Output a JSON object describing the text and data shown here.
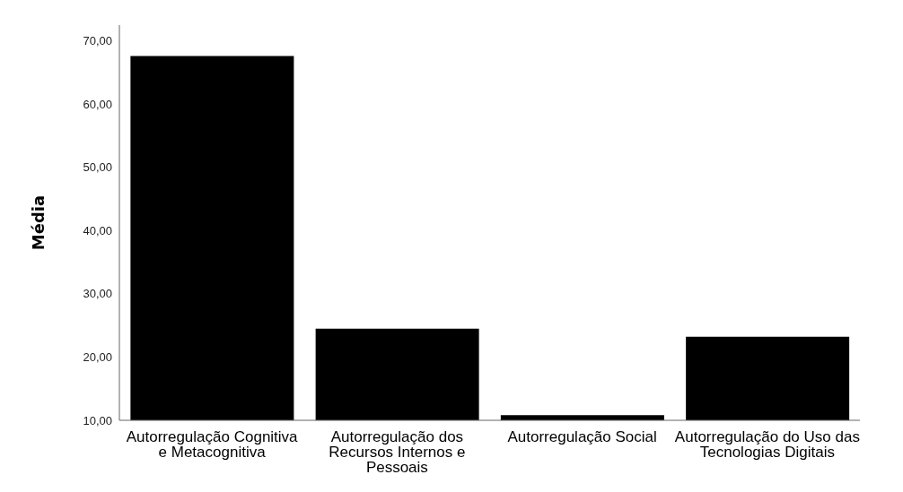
{
  "chart_data": {
    "type": "bar",
    "ylabel": "Média",
    "categories": [
      "Autorregulação Cognitiva e Metacognitiva",
      "Autorregulação dos Recursos Internos e Pessoais",
      "Autorregulação Social",
      "Autorregulação do Uso das Tecnologias Digitais"
    ],
    "values": [
      67.6,
      24.5,
      10.8,
      23.2
    ],
    "color": "#000000",
    "ylim": [
      10,
      72.5
    ],
    "yticks": [
      {
        "value": 10,
        "label": "10,00"
      },
      {
        "value": 20,
        "label": "20,00"
      },
      {
        "value": 30,
        "label": "30,00"
      },
      {
        "value": 40,
        "label": "40,00"
      },
      {
        "value": 50,
        "label": "50,00"
      },
      {
        "value": 60,
        "label": "60,00"
      },
      {
        "value": 70,
        "label": "70,00"
      }
    ],
    "grid": false
  }
}
